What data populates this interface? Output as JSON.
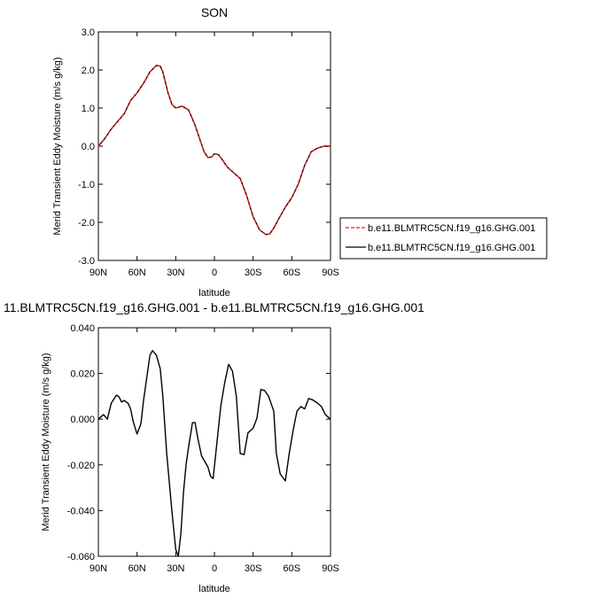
{
  "chart_data": [
    {
      "type": "line",
      "title": "SON",
      "xlabel": "latitude",
      "ylabel": "Merid Transient Eddy Moisture (m/s g/kg)",
      "xlim": [
        90,
        -90
      ],
      "ylim": [
        -3.0,
        3.0
      ],
      "x_ticks": [
        90,
        60,
        30,
        0,
        -30,
        -60,
        -90
      ],
      "x_tick_labels": [
        "90N",
        "60N",
        "30N",
        "0",
        "30S",
        "60S",
        "90S"
      ],
      "y_ticks": [
        -3,
        -2,
        -1,
        0,
        1,
        2,
        3
      ],
      "y_tick_labels": [
        "-3.0",
        "-2.0",
        "-1.0",
        "0.0",
        "1.0",
        "2.0",
        "3.0"
      ],
      "grid": false,
      "legend_position": "right",
      "x": [
        90,
        85,
        80,
        75,
        70,
        65,
        60,
        55,
        50,
        45,
        42,
        40,
        36,
        33,
        30,
        25,
        20,
        15,
        10,
        8,
        5,
        2,
        0,
        -3,
        -6,
        -10,
        -15,
        -20,
        -25,
        -30,
        -35,
        -40,
        -43,
        -46,
        -50,
        -55,
        -60,
        -65,
        -70,
        -75,
        -80,
        -85,
        -90
      ],
      "series": [
        {
          "name": "b.e11.BLMTRC5CN.f19_g16.GHG.001",
          "color": "#e41a1c",
          "dash": "dashed",
          "values": [
            0.0,
            0.2,
            0.45,
            0.65,
            0.85,
            1.2,
            1.4,
            1.65,
            1.95,
            2.12,
            2.1,
            1.95,
            1.4,
            1.1,
            1.0,
            1.05,
            0.95,
            0.55,
            0.05,
            -0.15,
            -0.3,
            -0.28,
            -0.2,
            -0.22,
            -0.35,
            -0.55,
            -0.7,
            -0.85,
            -1.3,
            -1.85,
            -2.2,
            -2.32,
            -2.3,
            -2.15,
            -1.9,
            -1.6,
            -1.35,
            -1.0,
            -0.5,
            -0.15,
            -0.05,
            0.0,
            0.0
          ]
        },
        {
          "name": "b.e11.BLMTRC5CN.f19_g16.GHG.001",
          "color": "#000000",
          "dash": "solid",
          "values": [
            0.0,
            0.2,
            0.45,
            0.65,
            0.85,
            1.2,
            1.4,
            1.65,
            1.95,
            2.12,
            2.1,
            1.95,
            1.4,
            1.1,
            1.0,
            1.05,
            0.95,
            0.55,
            0.05,
            -0.15,
            -0.3,
            -0.28,
            -0.2,
            -0.22,
            -0.35,
            -0.55,
            -0.7,
            -0.85,
            -1.3,
            -1.85,
            -2.2,
            -2.32,
            -2.3,
            -2.15,
            -1.9,
            -1.6,
            -1.35,
            -1.0,
            -0.5,
            -0.15,
            -0.05,
            0.0,
            0.0
          ]
        }
      ]
    },
    {
      "type": "line",
      "title": "11.BLMTRC5CN.f19_g16.GHG.001 - b.e11.BLMTRC5CN.f19_g16.GHG.001",
      "xlabel": "latitude",
      "ylabel": "Merid Transient Eddy Moisture (m/s g/kg)",
      "xlim": [
        90,
        -90
      ],
      "ylim": [
        -0.06,
        0.04
      ],
      "x_ticks": [
        90,
        60,
        30,
        0,
        -30,
        -60,
        -90
      ],
      "x_tick_labels": [
        "90N",
        "60N",
        "30N",
        "0",
        "30S",
        "60S",
        "90S"
      ],
      "y_ticks": [
        -0.06,
        -0.04,
        -0.02,
        0.0,
        0.02,
        0.04
      ],
      "y_tick_labels": [
        "-0.060",
        "-0.040",
        "-0.020",
        "0.000",
        "0.020",
        "0.040"
      ],
      "grid": false,
      "x": [
        90,
        86,
        83,
        80,
        76,
        74,
        72,
        70,
        67,
        65,
        63,
        60,
        57,
        55,
        52,
        50,
        48,
        45,
        42,
        40,
        37,
        33,
        30,
        28,
        26,
        24,
        22,
        20,
        17,
        15,
        13,
        10,
        8,
        5,
        3,
        1,
        -2,
        -5,
        -8,
        -11,
        -14,
        -17,
        -20,
        -23,
        -26,
        -30,
        -33,
        -36,
        -39,
        -42,
        -46,
        -48,
        -51,
        -55,
        -58,
        -61,
        -64,
        -67,
        -70,
        -73,
        -76,
        -80,
        -83,
        -86,
        -90
      ],
      "series": [
        {
          "name": "",
          "color": "#000000",
          "dash": "solid",
          "values": [
            0.0,
            0.002,
            0.0,
            0.007,
            0.0105,
            0.0098,
            0.0075,
            0.0082,
            0.007,
            0.0045,
            -0.001,
            -0.0065,
            -0.002,
            0.008,
            0.02,
            0.028,
            0.03,
            0.028,
            0.022,
            0.01,
            -0.015,
            -0.04,
            -0.057,
            -0.06,
            -0.05,
            -0.032,
            -0.02,
            -0.012,
            -0.0015,
            -0.0015,
            -0.008,
            -0.016,
            -0.018,
            -0.021,
            -0.025,
            -0.026,
            -0.01,
            0.006,
            0.016,
            0.024,
            0.021,
            0.01,
            -0.015,
            -0.0155,
            -0.006,
            -0.004,
            0.0005,
            0.013,
            0.0125,
            0.01,
            0.0035,
            -0.015,
            -0.024,
            -0.027,
            -0.015,
            -0.005,
            0.0035,
            0.0055,
            0.0045,
            0.009,
            0.0085,
            0.007,
            0.0055,
            0.002,
            0.0
          ]
        }
      ]
    }
  ]
}
